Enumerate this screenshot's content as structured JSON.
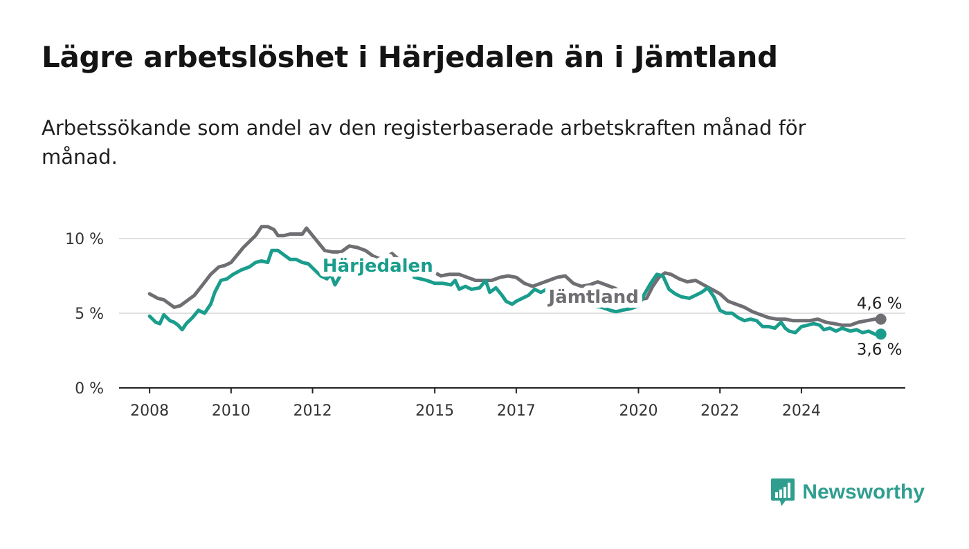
{
  "title": "Lägre arbetslöshet i Härjedalen än i Jämtland",
  "subtitle": "Arbetssökande som andel av den registerbaserade arbetskraften månad för månad.",
  "brand": {
    "name": "Newsworthy",
    "icon": "bar-chart-speech-bubble-icon",
    "color": "#2f9e8f"
  },
  "chart_data": {
    "type": "line",
    "x_unit": "year",
    "ylim": [
      0,
      10
    ],
    "yticks": [
      {
        "value": 0,
        "label": "0 %"
      },
      {
        "value": 5,
        "label": "5 %"
      },
      {
        "value": 10,
        "label": "10 %"
      }
    ],
    "xlim": [
      2007.25,
      2026.55
    ],
    "xticks": [
      {
        "value": 2008,
        "label": "2008"
      },
      {
        "value": 2010,
        "label": "2010"
      },
      {
        "value": 2012,
        "label": "2012"
      },
      {
        "value": 2015,
        "label": "2015"
      },
      {
        "value": 2017,
        "label": "2017"
      },
      {
        "value": 2020,
        "label": "2020"
      },
      {
        "value": 2022,
        "label": "2022"
      },
      {
        "value": 2024,
        "label": "2024"
      }
    ],
    "grid": true,
    "series": [
      {
        "name": "Jämtland",
        "color": "#6f6e73",
        "end_label": "4,6 %",
        "points": [
          [
            2008.0,
            6.3
          ],
          [
            2008.2,
            6.0
          ],
          [
            2008.35,
            5.9
          ],
          [
            2008.5,
            5.6
          ],
          [
            2008.6,
            5.4
          ],
          [
            2008.75,
            5.5
          ],
          [
            2008.9,
            5.8
          ],
          [
            2009.1,
            6.2
          ],
          [
            2009.3,
            6.9
          ],
          [
            2009.5,
            7.6
          ],
          [
            2009.7,
            8.1
          ],
          [
            2009.85,
            8.2
          ],
          [
            2010.0,
            8.4
          ],
          [
            2010.15,
            8.9
          ],
          [
            2010.3,
            9.4
          ],
          [
            2010.45,
            9.8
          ],
          [
            2010.6,
            10.2
          ],
          [
            2010.75,
            10.8
          ],
          [
            2010.9,
            10.8
          ],
          [
            2011.05,
            10.6
          ],
          [
            2011.15,
            10.2
          ],
          [
            2011.3,
            10.2
          ],
          [
            2011.45,
            10.3
          ],
          [
            2011.6,
            10.3
          ],
          [
            2011.75,
            10.3
          ],
          [
            2011.85,
            10.7
          ],
          [
            2012.0,
            10.2
          ],
          [
            2012.15,
            9.7
          ],
          [
            2012.3,
            9.2
          ],
          [
            2012.5,
            9.1
          ],
          [
            2012.7,
            9.1
          ],
          [
            2012.9,
            9.5
          ],
          [
            2013.1,
            9.4
          ],
          [
            2013.3,
            9.2
          ],
          [
            2013.5,
            8.8
          ],
          [
            2013.7,
            8.6
          ],
          [
            2013.95,
            9.0
          ],
          [
            2014.2,
            8.4
          ],
          [
            2014.45,
            8.2
          ],
          [
            2014.7,
            8.0
          ],
          [
            2014.95,
            7.8
          ],
          [
            2015.15,
            7.5
          ],
          [
            2015.35,
            7.6
          ],
          [
            2015.6,
            7.6
          ],
          [
            2015.8,
            7.4
          ],
          [
            2016.0,
            7.2
          ],
          [
            2016.2,
            7.2
          ],
          [
            2016.4,
            7.2
          ],
          [
            2016.6,
            7.4
          ],
          [
            2016.8,
            7.5
          ],
          [
            2017.0,
            7.4
          ],
          [
            2017.2,
            7.0
          ],
          [
            2017.4,
            6.8
          ],
          [
            2017.6,
            7.0
          ],
          [
            2017.8,
            7.2
          ],
          [
            2018.0,
            7.4
          ],
          [
            2018.2,
            7.5
          ],
          [
            2018.4,
            7.0
          ],
          [
            2018.6,
            6.8
          ],
          [
            2018.8,
            6.9
          ],
          [
            2019.0,
            7.1
          ],
          [
            2019.2,
            6.9
          ],
          [
            2019.4,
            6.7
          ],
          [
            2019.6,
            6.4
          ],
          [
            2019.8,
            6.0
          ],
          [
            2020.0,
            5.9
          ],
          [
            2020.2,
            6.0
          ],
          [
            2020.35,
            6.8
          ],
          [
            2020.5,
            7.4
          ],
          [
            2020.65,
            7.7
          ],
          [
            2020.8,
            7.6
          ],
          [
            2021.0,
            7.3
          ],
          [
            2021.2,
            7.1
          ],
          [
            2021.4,
            7.2
          ],
          [
            2021.6,
            6.9
          ],
          [
            2021.8,
            6.6
          ],
          [
            2022.0,
            6.3
          ],
          [
            2022.2,
            5.8
          ],
          [
            2022.4,
            5.6
          ],
          [
            2022.6,
            5.4
          ],
          [
            2022.8,
            5.1
          ],
          [
            2023.0,
            4.9
          ],
          [
            2023.2,
            4.7
          ],
          [
            2023.4,
            4.6
          ],
          [
            2023.6,
            4.6
          ],
          [
            2023.8,
            4.5
          ],
          [
            2024.0,
            4.5
          ],
          [
            2024.2,
            4.5
          ],
          [
            2024.4,
            4.6
          ],
          [
            2024.6,
            4.4
          ],
          [
            2024.8,
            4.3
          ],
          [
            2025.0,
            4.2
          ],
          [
            2025.2,
            4.2
          ],
          [
            2025.4,
            4.4
          ],
          [
            2025.6,
            4.5
          ],
          [
            2025.8,
            4.6
          ],
          [
            2025.95,
            4.6
          ]
        ]
      },
      {
        "name": "Härjedalen",
        "color": "#1a9d8c",
        "end_label": "3,6 %",
        "points": [
          [
            2008.0,
            4.8
          ],
          [
            2008.15,
            4.4
          ],
          [
            2008.25,
            4.3
          ],
          [
            2008.35,
            4.9
          ],
          [
            2008.5,
            4.5
          ],
          [
            2008.6,
            4.4
          ],
          [
            2008.7,
            4.2
          ],
          [
            2008.8,
            3.9
          ],
          [
            2008.9,
            4.3
          ],
          [
            2009.05,
            4.7
          ],
          [
            2009.2,
            5.2
          ],
          [
            2009.35,
            5.0
          ],
          [
            2009.5,
            5.6
          ],
          [
            2009.6,
            6.4
          ],
          [
            2009.75,
            7.2
          ],
          [
            2009.9,
            7.3
          ],
          [
            2010.05,
            7.6
          ],
          [
            2010.25,
            7.9
          ],
          [
            2010.45,
            8.1
          ],
          [
            2010.6,
            8.4
          ],
          [
            2010.75,
            8.5
          ],
          [
            2010.9,
            8.4
          ],
          [
            2011.0,
            9.2
          ],
          [
            2011.15,
            9.2
          ],
          [
            2011.3,
            8.9
          ],
          [
            2011.45,
            8.6
          ],
          [
            2011.6,
            8.6
          ],
          [
            2011.75,
            8.4
          ],
          [
            2011.9,
            8.3
          ],
          [
            2012.05,
            7.9
          ],
          [
            2012.2,
            7.5
          ],
          [
            2012.35,
            7.3
          ],
          [
            2012.45,
            7.6
          ],
          [
            2012.55,
            6.9
          ],
          [
            2012.7,
            7.6
          ],
          [
            2012.85,
            8.1
          ],
          [
            2013.0,
            8.3
          ],
          [
            2013.1,
            7.6
          ],
          [
            2013.3,
            7.9
          ],
          [
            2013.5,
            8.2
          ],
          [
            2013.8,
            8.6
          ],
          [
            2014.1,
            8.4
          ],
          [
            2014.25,
            8.0
          ],
          [
            2014.35,
            8.3
          ],
          [
            2014.5,
            7.4
          ],
          [
            2014.8,
            7.2
          ],
          [
            2015.0,
            7.0
          ],
          [
            2015.2,
            7.0
          ],
          [
            2015.4,
            6.9
          ],
          [
            2015.5,
            7.2
          ],
          [
            2015.6,
            6.6
          ],
          [
            2015.75,
            6.8
          ],
          [
            2015.9,
            6.6
          ],
          [
            2016.1,
            6.7
          ],
          [
            2016.25,
            7.2
          ],
          [
            2016.35,
            6.4
          ],
          [
            2016.5,
            6.7
          ],
          [
            2016.65,
            6.2
          ],
          [
            2016.75,
            5.8
          ],
          [
            2016.9,
            5.6
          ],
          [
            2017.0,
            5.8
          ],
          [
            2017.15,
            6.0
          ],
          [
            2017.3,
            6.2
          ],
          [
            2017.45,
            6.6
          ],
          [
            2017.6,
            6.4
          ],
          [
            2017.75,
            6.6
          ],
          [
            2017.9,
            6.0
          ],
          [
            2018.05,
            6.3
          ],
          [
            2018.2,
            6.5
          ],
          [
            2018.35,
            6.0
          ],
          [
            2018.5,
            5.8
          ],
          [
            2018.7,
            5.6
          ],
          [
            2018.9,
            5.5
          ],
          [
            2019.1,
            5.4
          ],
          [
            2019.3,
            5.2
          ],
          [
            2019.45,
            5.1
          ],
          [
            2019.6,
            5.2
          ],
          [
            2019.8,
            5.3
          ],
          [
            2020.0,
            5.5
          ],
          [
            2020.15,
            6.3
          ],
          [
            2020.3,
            7.0
          ],
          [
            2020.45,
            7.6
          ],
          [
            2020.6,
            7.5
          ],
          [
            2020.75,
            6.6
          ],
          [
            2020.9,
            6.3
          ],
          [
            2021.05,
            6.1
          ],
          [
            2021.25,
            6.0
          ],
          [
            2021.4,
            6.2
          ],
          [
            2021.55,
            6.4
          ],
          [
            2021.7,
            6.7
          ],
          [
            2021.85,
            6.1
          ],
          [
            2022.0,
            5.2
          ],
          [
            2022.15,
            5.0
          ],
          [
            2022.3,
            5.0
          ],
          [
            2022.45,
            4.7
          ],
          [
            2022.6,
            4.5
          ],
          [
            2022.75,
            4.6
          ],
          [
            2022.9,
            4.5
          ],
          [
            2023.05,
            4.1
          ],
          [
            2023.2,
            4.1
          ],
          [
            2023.35,
            4.0
          ],
          [
            2023.5,
            4.4
          ],
          [
            2023.6,
            4.0
          ],
          [
            2023.7,
            3.8
          ],
          [
            2023.85,
            3.7
          ],
          [
            2024.0,
            4.1
          ],
          [
            2024.15,
            4.2
          ],
          [
            2024.3,
            4.3
          ],
          [
            2024.45,
            4.2
          ],
          [
            2024.55,
            3.9
          ],
          [
            2024.7,
            4.0
          ],
          [
            2024.85,
            3.8
          ],
          [
            2025.0,
            4.0
          ],
          [
            2025.2,
            3.8
          ],
          [
            2025.35,
            3.9
          ],
          [
            2025.5,
            3.7
          ],
          [
            2025.65,
            3.8
          ],
          [
            2025.8,
            3.6
          ],
          [
            2025.95,
            3.6
          ]
        ]
      }
    ],
    "series_labels": [
      {
        "series": "Härjedalen",
        "x": 2013.6,
        "y": 8.2
      },
      {
        "series": "Jämtland",
        "x": 2018.9,
        "y": 6.1
      }
    ]
  }
}
